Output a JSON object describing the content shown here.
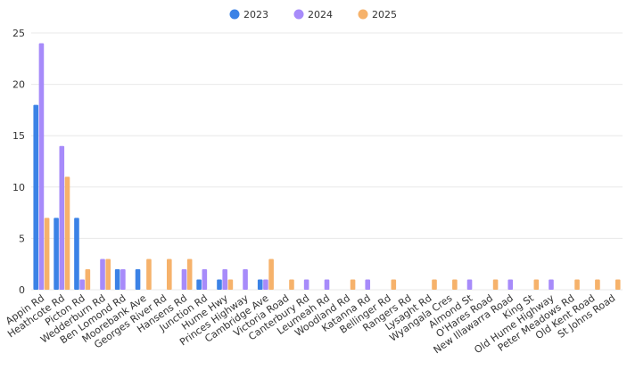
{
  "chart_data": {
    "type": "bar",
    "title": "",
    "xlabel": "",
    "ylabel": "",
    "ylim": [
      0,
      25
    ],
    "yticks": [
      0,
      5,
      10,
      15,
      20,
      25
    ],
    "grid": true,
    "legend_position": "top-center",
    "categories": [
      "Appin Rd",
      "Heathcote Rd",
      "Picton Rd",
      "Wedderburn Rd",
      "Ben Lomond Rd",
      "Moorebank Ave",
      "Georges River Rd",
      "Hansens Rd",
      "Junction Rd",
      "Hume Hwy",
      "Princes Highway",
      "Cambridge Ave",
      "Victoria Road",
      "Canterbury Rd",
      "Leumeah Rd",
      "Woodland Rd",
      "Katanna Rd",
      "Bellinger Rd",
      "Rangers Rd",
      "Lysaght Rd",
      "Wyangala Cres",
      "Almond St",
      "O'Hares Road",
      "New Illawarra Road",
      "King St",
      "Old Hume Highway",
      "Peter Meadows Rd",
      "Old Kent Road",
      "St Johns Road"
    ],
    "series": [
      {
        "name": "2023",
        "color": "#3b82e6",
        "values": [
          18,
          7,
          7,
          0,
          2,
          2,
          0,
          0,
          1,
          1,
          0,
          1,
          0,
          0,
          0,
          0,
          0,
          0,
          0,
          0,
          0,
          0,
          0,
          0,
          0,
          0,
          0,
          0,
          0
        ]
      },
      {
        "name": "2024",
        "color": "#a78bfa",
        "values": [
          24,
          14,
          1,
          3,
          2,
          0,
          0,
          2,
          2,
          2,
          2,
          1,
          0,
          1,
          1,
          0,
          1,
          0,
          0,
          0,
          0,
          1,
          0,
          1,
          0,
          1,
          0,
          0,
          0
        ]
      },
      {
        "name": "2025",
        "color": "#f6b26b",
        "values": [
          7,
          11,
          2,
          3,
          0,
          3,
          3,
          3,
          0,
          1,
          0,
          3,
          1,
          0,
          0,
          1,
          0,
          1,
          0,
          1,
          1,
          0,
          1,
          0,
          1,
          0,
          1,
          1,
          1
        ]
      }
    ]
  }
}
